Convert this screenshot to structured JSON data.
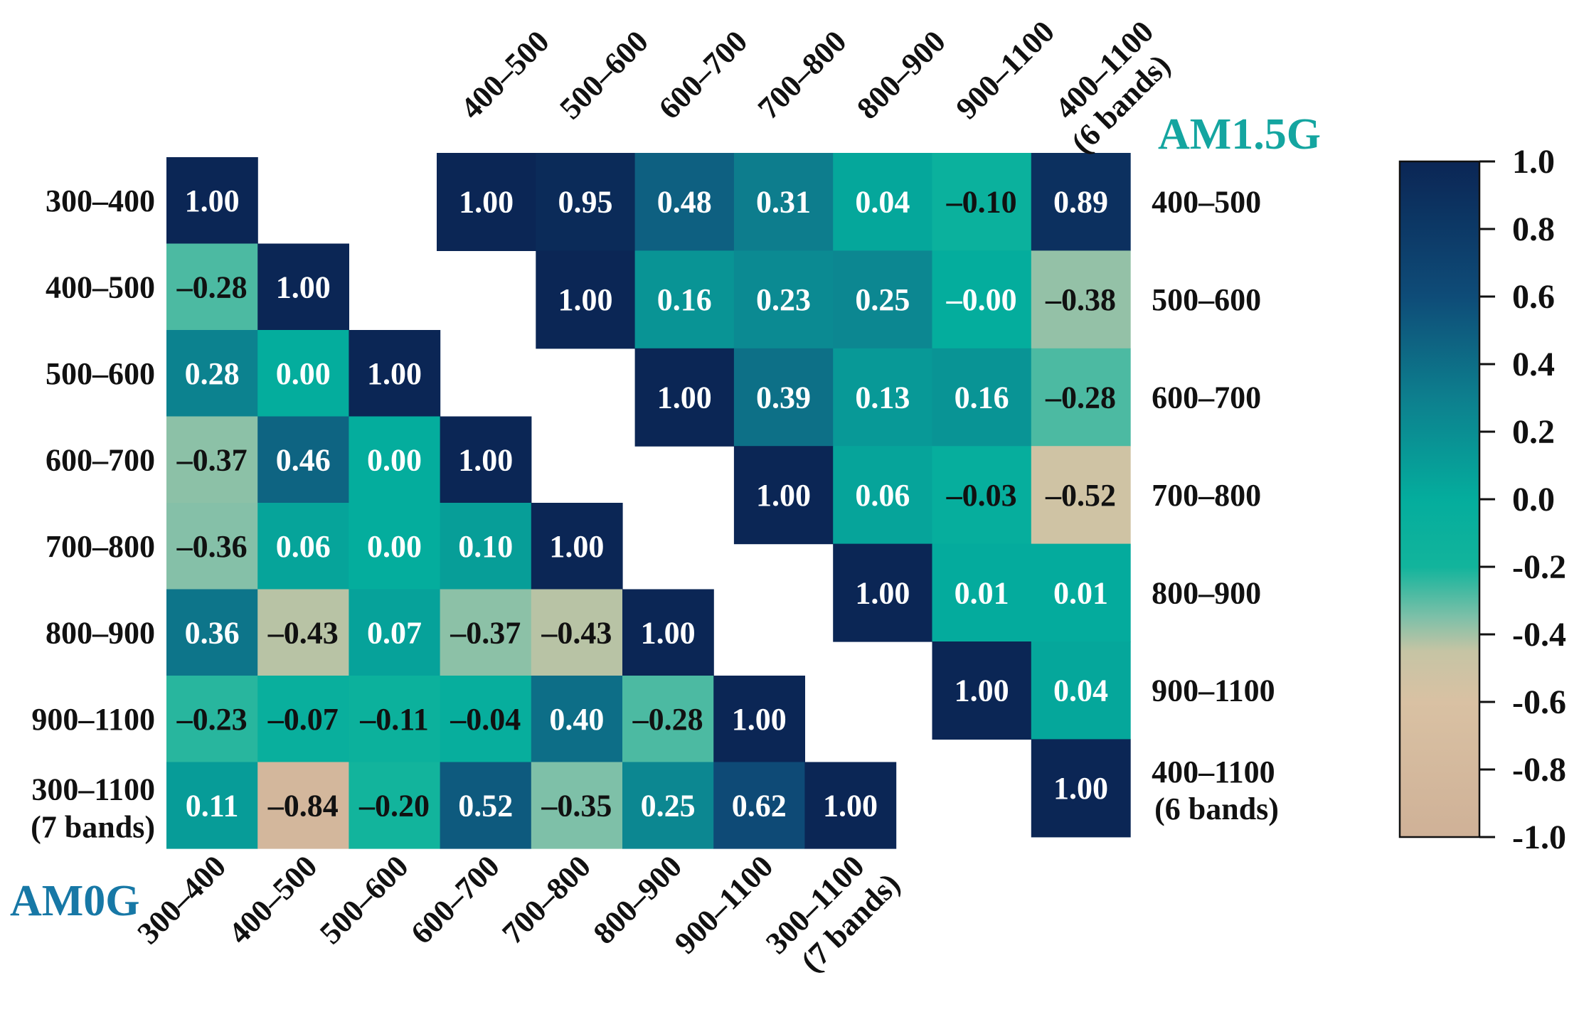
{
  "chart_data": [
    {
      "type": "heatmap",
      "title": "AM0G",
      "triangle": "lower",
      "row_labels": [
        [
          "300–400"
        ],
        [
          "400–500"
        ],
        [
          "500–600"
        ],
        [
          "600–700"
        ],
        [
          "700–800"
        ],
        [
          "800–900"
        ],
        [
          "900–1100"
        ],
        [
          "300–1100",
          "(7 bands)"
        ]
      ],
      "col_labels": [
        [
          "300–400"
        ],
        [
          "400–500"
        ],
        [
          "500–600"
        ],
        [
          "600–700"
        ],
        [
          "700–800"
        ],
        [
          "800–900"
        ],
        [
          "900–1100"
        ],
        [
          "300–1100",
          "(7 bands)"
        ]
      ],
      "values": [
        [
          1.0
        ],
        [
          -0.28,
          1.0
        ],
        [
          0.28,
          0.0,
          1.0
        ],
        [
          -0.37,
          0.46,
          0.0,
          1.0
        ],
        [
          -0.36,
          0.06,
          0.0,
          0.1,
          1.0
        ],
        [
          0.36,
          -0.43,
          0.07,
          -0.37,
          -0.43,
          1.0
        ],
        [
          -0.23,
          -0.07,
          -0.11,
          -0.04,
          0.4,
          -0.28,
          1.0
        ],
        [
          0.11,
          -0.84,
          -0.2,
          0.52,
          -0.35,
          0.25,
          0.62,
          1.0
        ]
      ],
      "value_labels": [
        [
          "1.00"
        ],
        [
          "–0.28",
          "1.00"
        ],
        [
          "0.28",
          "0.00",
          "1.00"
        ],
        [
          "–0.37",
          "0.46",
          "0.00",
          "1.00"
        ],
        [
          "–0.36",
          "0.06",
          "0.00",
          "0.10",
          "1.00"
        ],
        [
          "0.36",
          "–0.43",
          "0.07",
          "–0.37",
          "–0.43",
          "1.00"
        ],
        [
          "–0.23",
          "–0.07",
          "–0.11",
          "–0.04",
          "0.40",
          "–0.28",
          "1.00"
        ],
        [
          "0.11",
          "–0.84",
          "–0.20",
          "0.52",
          "–0.35",
          "0.25",
          "0.62",
          "1.00"
        ]
      ]
    },
    {
      "type": "heatmap",
      "title": "AM1.5G",
      "triangle": "upper",
      "row_labels": [
        [
          "400–500"
        ],
        [
          "500–600"
        ],
        [
          "600–700"
        ],
        [
          "700–800"
        ],
        [
          "800–900"
        ],
        [
          "900–1100"
        ],
        [
          "400–1100",
          "(6 bands)"
        ]
      ],
      "col_labels": [
        [
          "400–500"
        ],
        [
          "500–600"
        ],
        [
          "600–700"
        ],
        [
          "700–800"
        ],
        [
          "800–900"
        ],
        [
          "900–1100"
        ],
        [
          "400–1100",
          "(6 bands)"
        ]
      ],
      "values": [
        [
          1.0,
          0.95,
          0.48,
          0.31,
          0.04,
          -0.1,
          0.89
        ],
        [
          1.0,
          0.16,
          0.23,
          0.25,
          -0.0,
          -0.38
        ],
        [
          1.0,
          0.39,
          0.13,
          0.16,
          -0.28
        ],
        [
          1.0,
          0.06,
          -0.03,
          -0.52
        ],
        [
          1.0,
          0.01,
          0.01
        ],
        [
          1.0,
          0.04
        ],
        [
          1.0
        ]
      ],
      "value_labels": [
        [
          "1.00",
          "0.95",
          "0.48",
          "0.31",
          "0.04",
          "–0.10",
          "0.89"
        ],
        [
          "1.00",
          "0.16",
          "0.23",
          "0.25",
          "–0.00",
          "–0.38"
        ],
        [
          "1.00",
          "0.39",
          "0.13",
          "0.16",
          "–0.28"
        ],
        [
          "1.00",
          "0.06",
          "–0.03",
          "–0.52"
        ],
        [
          "1.00",
          "0.01",
          "0.01"
        ],
        [
          "1.00",
          "0.04"
        ],
        [
          "1.00"
        ]
      ]
    }
  ],
  "colorbar": {
    "range": [
      -1.0,
      1.0
    ],
    "ticks": [
      "1.0",
      "0.8",
      "0.6",
      "0.4",
      "0.2",
      "0.0",
      "-0.2",
      "-0.4",
      "-0.6",
      "-0.8",
      "-1.0"
    ],
    "stops": [
      {
        "value": 1.0,
        "color": "#0b2655"
      },
      {
        "value": 0.6,
        "color": "#0e4c78"
      },
      {
        "value": 0.3,
        "color": "#0d7f8e"
      },
      {
        "value": 0.0,
        "color": "#04ad9d"
      },
      {
        "value": -0.2,
        "color": "#12b49c"
      },
      {
        "value": -0.35,
        "color": "#7ec0a8"
      },
      {
        "value": -0.45,
        "color": "#c6c4a4"
      },
      {
        "value": -0.6,
        "color": "#d9c1a3"
      },
      {
        "value": -1.0,
        "color": "#cfb197"
      }
    ]
  },
  "colors": {
    "am0g_title": "#1778a6",
    "am15g_title": "#14a5a0",
    "text_dark": "#111111",
    "text_light": "#ffffff"
  }
}
